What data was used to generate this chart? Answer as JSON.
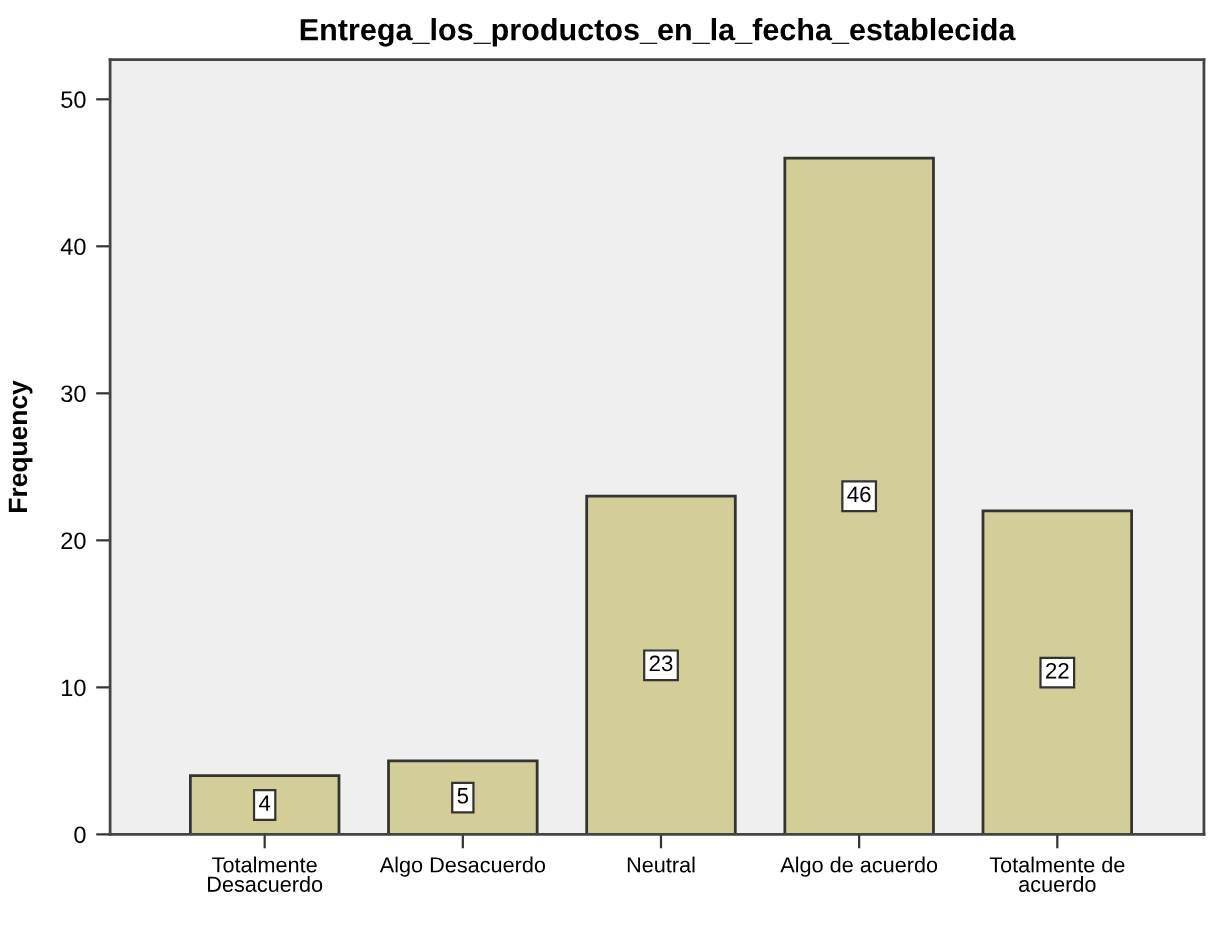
{
  "chart_data": {
    "type": "bar",
    "title": "Entrega_los_productos_en_la_fecha_establecida",
    "ylabel": "Frequency",
    "categories": [
      "Totalmente\nDesacuerdo",
      "Algo Desacuerdo",
      "Neutral",
      "Algo de acuerdo",
      "Totalmente de\nacuerdo"
    ],
    "values": [
      4,
      5,
      23,
      46,
      22
    ],
    "color": "#d3ce97",
    "ylim": [
      0,
      52.7
    ],
    "yticks": [
      0,
      10,
      20,
      30,
      40,
      50
    ],
    "grid": false,
    "data_labels": true
  }
}
